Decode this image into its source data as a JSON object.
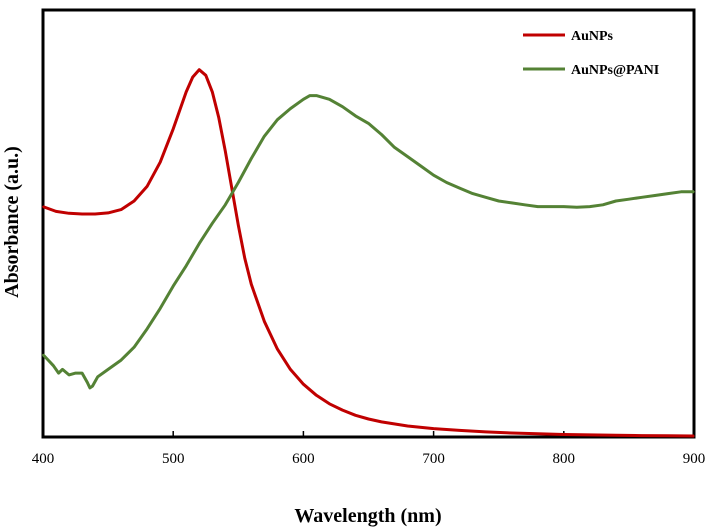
{
  "chart_data": {
    "type": "line",
    "title": "",
    "xlabel": "Wavelength (nm)",
    "ylabel": "Absorbance (a.u.)",
    "xlim": [
      400,
      900
    ],
    "ylim": [
      0,
      1
    ],
    "xticks": [
      400,
      500,
      600,
      700,
      800,
      900
    ],
    "xtick_labels": [
      "400",
      "500",
      "600",
      "700",
      "800",
      "900"
    ],
    "yticks_shown": false,
    "grid": false,
    "legend_position": "top-right",
    "series": [
      {
        "name": "AuNPs",
        "color": "#c00000",
        "x": [
          400,
          410,
          420,
          430,
          440,
          450,
          460,
          470,
          480,
          490,
          500,
          505,
          510,
          515,
          520,
          525,
          530,
          535,
          540,
          545,
          550,
          555,
          560,
          570,
          580,
          590,
          600,
          610,
          620,
          630,
          640,
          650,
          660,
          680,
          700,
          720,
          740,
          760,
          780,
          800,
          820,
          840,
          860,
          880,
          900
        ],
        "y": [
          0.62,
          0.607,
          0.602,
          0.6,
          0.6,
          0.603,
          0.612,
          0.635,
          0.675,
          0.74,
          0.83,
          0.88,
          0.93,
          0.97,
          0.99,
          0.975,
          0.93,
          0.86,
          0.77,
          0.67,
          0.57,
          0.48,
          0.41,
          0.31,
          0.235,
          0.18,
          0.14,
          0.11,
          0.087,
          0.07,
          0.056,
          0.046,
          0.038,
          0.027,
          0.02,
          0.015,
          0.011,
          0.008,
          0.006,
          0.004,
          0.003,
          0.002,
          0.001,
          0.0005,
          0.0
        ]
      },
      {
        "name": "AuNPs@PANI",
        "color": "#548235",
        "x": [
          400,
          404,
          408,
          412,
          415,
          420,
          425,
          430,
          434,
          436,
          438,
          442,
          450,
          460,
          470,
          480,
          490,
          500,
          510,
          520,
          530,
          540,
          550,
          560,
          570,
          580,
          590,
          600,
          605,
          610,
          620,
          630,
          640,
          650,
          660,
          670,
          680,
          690,
          700,
          710,
          720,
          730,
          740,
          750,
          760,
          770,
          780,
          790,
          800,
          810,
          820,
          830,
          840,
          850,
          860,
          870,
          880,
          890,
          900
        ],
        "y": [
          0.22,
          0.205,
          0.19,
          0.17,
          0.18,
          0.165,
          0.17,
          0.17,
          0.145,
          0.13,
          0.135,
          0.16,
          0.18,
          0.205,
          0.24,
          0.29,
          0.345,
          0.405,
          0.46,
          0.52,
          0.575,
          0.625,
          0.685,
          0.75,
          0.81,
          0.855,
          0.885,
          0.91,
          0.92,
          0.92,
          0.91,
          0.89,
          0.865,
          0.845,
          0.815,
          0.78,
          0.755,
          0.73,
          0.705,
          0.685,
          0.67,
          0.655,
          0.645,
          0.635,
          0.63,
          0.625,
          0.62,
          0.62,
          0.62,
          0.618,
          0.62,
          0.625,
          0.635,
          0.64,
          0.645,
          0.65,
          0.655,
          0.66,
          0.66
        ]
      }
    ]
  }
}
